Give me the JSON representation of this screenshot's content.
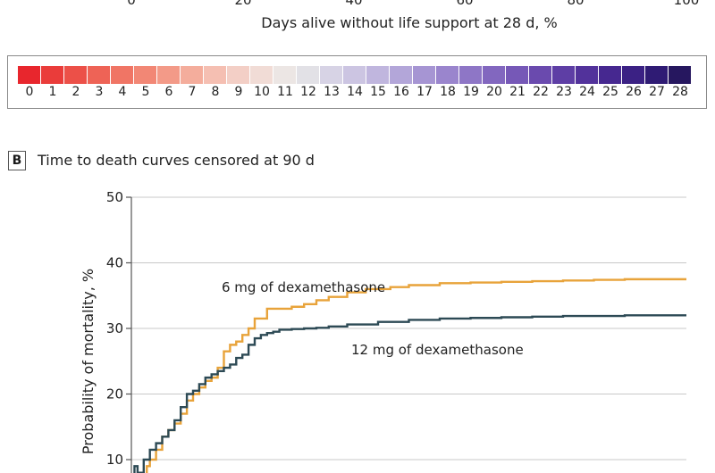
{
  "panel_a": {
    "visible_ticks": [
      "0",
      "20",
      "40",
      "60",
      "80",
      "100"
    ],
    "xlabel": "Days alive without life support at 28 d, %",
    "legend_labels": [
      "0",
      "1",
      "2",
      "3",
      "4",
      "5",
      "6",
      "7",
      "8",
      "9",
      "10",
      "11",
      "12",
      "13",
      "14",
      "15",
      "16",
      "17",
      "18",
      "19",
      "20",
      "21",
      "22",
      "23",
      "24",
      "25",
      "26",
      "27",
      "28"
    ],
    "legend_colors": [
      "#e8262d",
      "#ea3c3a",
      "#ec5048",
      "#ee6356",
      "#f07565",
      "#f28775",
      "#f39a88",
      "#f4ad9c",
      "#f5bfb2",
      "#f3cfc6",
      "#f1dcd6",
      "#ece6e4",
      "#e2e1e6",
      "#d7d3e5",
      "#ccc5e2",
      "#c0b6de",
      "#b3a6d9",
      "#a695d3",
      "#9a85cd",
      "#8e76c6",
      "#8267bf",
      "#7658b7",
      "#6a4aae",
      "#5e3ea5",
      "#52329b",
      "#462890",
      "#3b2184",
      "#2f1b74",
      "#26175f"
    ]
  },
  "panel_b": {
    "tag": "B",
    "title": "Time to death curves censored at 90 d",
    "series_label_6mg": "6 mg of dexamethasone",
    "series_label_12mg": "12 mg of dexamethasone"
  },
  "chart_data": {
    "type": "line",
    "title": "Time to death curves censored at 90 d",
    "ylabel": "Probability of mortality, %",
    "ylim": [
      0,
      50
    ],
    "yticks": [
      10,
      20,
      30,
      40,
      50
    ],
    "xlim": [
      0,
      90
    ],
    "grid": "horizontal",
    "series": [
      {
        "name": "6 mg of dexamethasone",
        "color": "#e8a33a",
        "x": [
          2,
          2.5,
          3,
          4,
          5,
          6,
          7,
          8,
          9,
          10,
          11,
          12,
          13,
          14,
          15,
          16,
          17,
          18,
          19,
          20,
          22,
          24,
          26,
          28,
          30,
          32,
          35,
          38,
          42,
          45,
          50,
          55,
          60,
          65,
          70,
          75,
          80,
          85,
          90
        ],
        "y": [
          7.5,
          9,
          10,
          11.5,
          13.5,
          14.5,
          15.5,
          17,
          19,
          20,
          21,
          22,
          22.5,
          24,
          26.5,
          27.5,
          28,
          29,
          30,
          31.5,
          33,
          33,
          33.3,
          33.7,
          34.3,
          34.8,
          35.5,
          36,
          36.3,
          36.6,
          36.9,
          37,
          37.1,
          37.2,
          37.3,
          37.4,
          37.5,
          37.5,
          37.5
        ]
      },
      {
        "name": "12 mg of dexamethasone",
        "color": "#2d4a55",
        "x": [
          0.5,
          1,
          2,
          3,
          4,
          5,
          6,
          7,
          8,
          9,
          10,
          11,
          12,
          13,
          14,
          15,
          16,
          17,
          18,
          19,
          20,
          21,
          22,
          23,
          24,
          26,
          28,
          30,
          32,
          35,
          40,
          45,
          50,
          55,
          60,
          65,
          70,
          75,
          80,
          85,
          90
        ],
        "y": [
          9,
          8,
          10,
          11.5,
          12.5,
          13.5,
          14.5,
          16,
          18,
          20,
          20.5,
          21.5,
          22.5,
          23,
          23.5,
          24,
          24.5,
          25.5,
          26,
          27.5,
          28.5,
          29,
          29.3,
          29.5,
          29.8,
          29.9,
          30,
          30.1,
          30.3,
          30.6,
          31,
          31.3,
          31.5,
          31.6,
          31.7,
          31.8,
          31.9,
          31.9,
          32,
          32,
          32
        ]
      }
    ]
  }
}
